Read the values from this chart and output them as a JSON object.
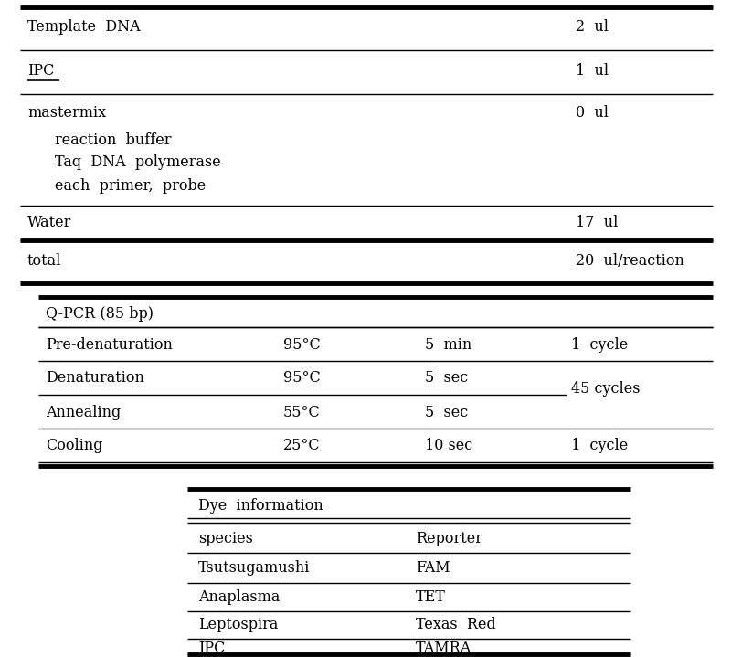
{
  "bg_color": "#ffffff",
  "text_color": "#000000",
  "font_family": "DejaVu Serif",
  "fig_width": 8.0,
  "fig_height": 7.19,
  "t1_rows_left": [
    "Template DNA",
    "IPC",
    "mastermix",
    "   reaction buffer",
    "   Taq DNA polymerase",
    "   each primer, probe",
    "Water",
    "total"
  ],
  "t1_rows_right": [
    "2  ul",
    "1  ul",
    "0  ul",
    "",
    "",
    "",
    "17  ul",
    "20  ul/reaction"
  ],
  "t2_title": "Q-PCR (85 bp)",
  "t2_col1": [
    "Pre-denaturation",
    "Denaturation",
    "Annealing",
    "Cooling"
  ],
  "t2_col2": [
    "95°C",
    "95°C",
    "55°C",
    "25°C"
  ],
  "t2_col3": [
    "5  min",
    "5  sec",
    "5  sec",
    "10 sec"
  ],
  "t2_col4": [
    "1  cycle",
    "45 cycles",
    "",
    "1  cycle"
  ],
  "t3_title": "Dye information",
  "t3_species": [
    "species",
    "Tsutsugamushi",
    "Anaplasma",
    "Leptospira",
    "IPC"
  ],
  "t3_reporter": [
    "Reporter",
    "FAM",
    "TET",
    "Texas  Red",
    "TAMRA"
  ]
}
